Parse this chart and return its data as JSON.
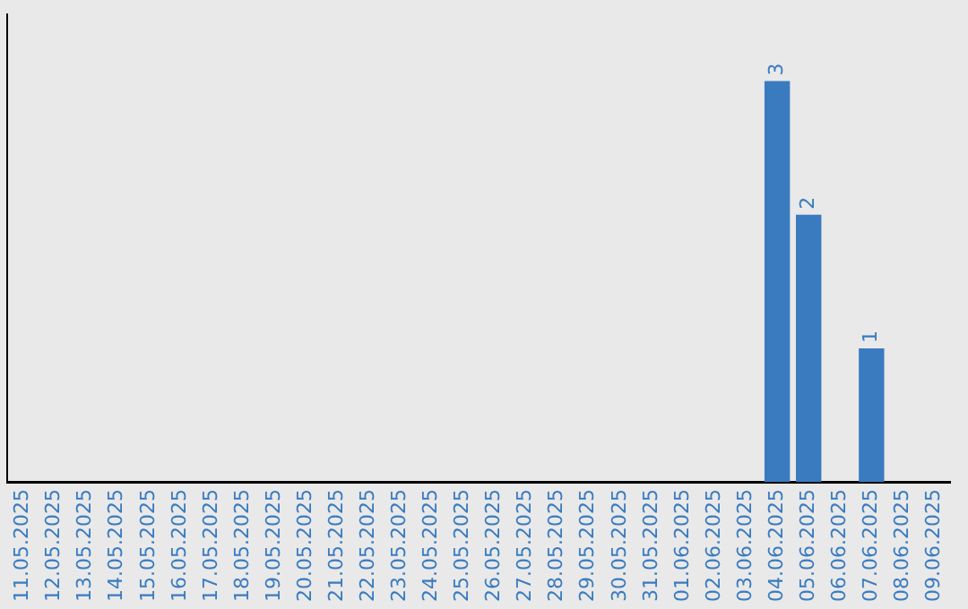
{
  "chart_data": {
    "type": "bar",
    "categories": [
      "11.05.2025",
      "12.05.2025",
      "13.05.2025",
      "14.05.2025",
      "15.05.2025",
      "16.05.2025",
      "17.05.2025",
      "18.05.2025",
      "19.05.2025",
      "20.05.2025",
      "21.05.2025",
      "22.05.2025",
      "23.05.2025",
      "24.05.2025",
      "25.05.2025",
      "26.05.2025",
      "27.05.2025",
      "28.05.2025",
      "29.05.2025",
      "30.05.2025",
      "31.05.2025",
      "01.06.2025",
      "02.06.2025",
      "03.06.2025",
      "04.06.2025",
      "05.06.2025",
      "06.06.2025",
      "07.06.2025",
      "08.06.2025",
      "09.06.2025"
    ],
    "values": [
      null,
      null,
      null,
      null,
      null,
      null,
      null,
      null,
      null,
      null,
      null,
      null,
      null,
      null,
      null,
      null,
      null,
      null,
      null,
      null,
      null,
      null,
      null,
      null,
      3,
      2,
      null,
      1,
      null,
      null
    ],
    "data_labels": true,
    "color": "#3a7bc0",
    "tick_labels": "x",
    "grid": false,
    "legend": false
  }
}
